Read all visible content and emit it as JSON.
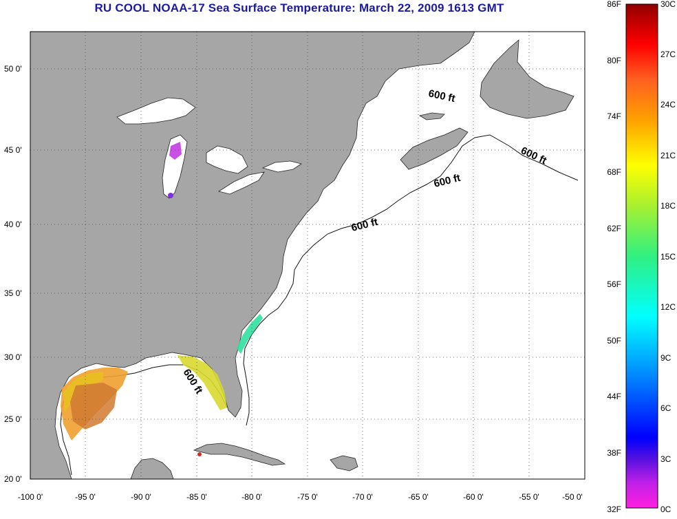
{
  "title": "RU COOL  NOAA-17  Sea Surface Temperature:  March 22, 2009 1613 GMT",
  "map": {
    "x_ticks": [
      "-100 0'",
      "-95 0'",
      "-90 0'",
      "-85 0'",
      "-80 0'",
      "-75 0'",
      "-70 0'",
      "-65 0'",
      "-60 0'",
      "-55 0'",
      "-50 0'"
    ],
    "y_ticks": [
      "50 0'",
      "45 0'",
      "40 0'",
      "35 0'",
      "30 0'",
      "25 0'",
      "20 0'"
    ],
    "isobath_labels": [
      "600 ft",
      "600 ft",
      "600 ft",
      "600 ft",
      "600 ft"
    ]
  },
  "colorbar": {
    "fahrenheit": [
      "86F",
      "80F",
      "74F",
      "68F",
      "62F",
      "56F",
      "50F",
      "44F",
      "38F",
      "32F"
    ],
    "celsius": [
      "30C",
      "27C",
      "24C",
      "21C",
      "18C",
      "15C",
      "12C",
      "9C",
      "6C",
      "3C",
      "0C"
    ]
  },
  "colors": {
    "land": "#a6a6a6",
    "ocean": "#ffffff",
    "title": "#1a1aa6"
  }
}
